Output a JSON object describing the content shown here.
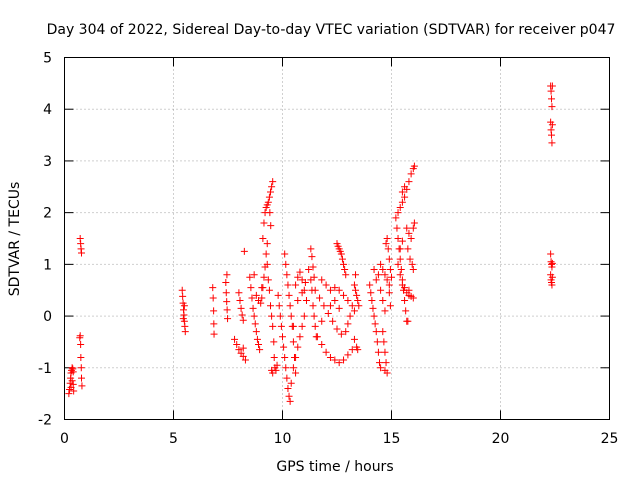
{
  "chart_data": {
    "type": "scatter",
    "title": "Day 304 of 2022, Sidereal Day-to-day VTEC variation (SDTVAR) for receiver p047",
    "xlabel": "GPS time / hours",
    "ylabel": "SDTVAR / TECUs",
    "xlim": [
      0,
      25
    ],
    "ylim": [
      -2,
      5
    ],
    "xticks": [
      "0",
      "5",
      "10",
      "15",
      "20",
      "25"
    ],
    "yticks": [
      "-2",
      "-1",
      "0",
      "1",
      "2",
      "3",
      "4",
      "5"
    ],
    "grid": true,
    "marker": "plus",
    "series_color": "#ff0000",
    "series": [
      {
        "name": "SDTVAR",
        "points": [
          [
            0.2,
            -1.5
          ],
          [
            0.23,
            -1.42
          ],
          [
            0.26,
            -1.3
          ],
          [
            0.28,
            -1.2
          ],
          [
            0.3,
            -1.1
          ],
          [
            0.32,
            -1.05
          ],
          [
            0.35,
            -1.0
          ],
          [
            0.38,
            -1.02
          ],
          [
            0.4,
            -1.08
          ],
          [
            0.3,
            -1.38
          ],
          [
            0.35,
            -1.25
          ],
          [
            0.4,
            -1.32
          ],
          [
            0.42,
            -1.45
          ],
          [
            0.7,
            -0.42
          ],
          [
            0.72,
            -0.38
          ],
          [
            0.74,
            -0.55
          ],
          [
            0.75,
            -0.8
          ],
          [
            0.77,
            -1.0
          ],
          [
            0.78,
            -1.2
          ],
          [
            0.8,
            -1.35
          ],
          [
            0.72,
            1.5
          ],
          [
            0.74,
            1.4
          ],
          [
            0.76,
            1.3
          ],
          [
            0.78,
            1.22
          ],
          [
            5.4,
            0.5
          ],
          [
            5.42,
            0.38
          ],
          [
            5.44,
            0.25
          ],
          [
            5.46,
            0.12
          ],
          [
            5.48,
            0.02
          ],
          [
            5.5,
            -0.1
          ],
          [
            5.52,
            -0.2
          ],
          [
            5.54,
            -0.3
          ],
          [
            5.45,
            -0.05
          ],
          [
            5.5,
            0.2
          ],
          [
            6.8,
            0.55
          ],
          [
            6.82,
            0.35
          ],
          [
            6.84,
            0.1
          ],
          [
            6.85,
            -0.15
          ],
          [
            6.86,
            -0.35
          ],
          [
            7.4,
            0.65
          ],
          [
            7.42,
            0.45
          ],
          [
            7.44,
            0.28
          ],
          [
            7.46,
            0.12
          ],
          [
            7.48,
            -0.05
          ],
          [
            7.45,
            0.8
          ],
          [
            7.8,
            -0.45
          ],
          [
            7.9,
            -0.55
          ],
          [
            8.0,
            -0.65
          ],
          [
            8.1,
            -0.72
          ],
          [
            8.2,
            -0.78
          ],
          [
            8.3,
            -0.85
          ],
          [
            8.2,
            -0.62
          ],
          [
            8.0,
            0.45
          ],
          [
            8.05,
            0.3
          ],
          [
            8.1,
            0.15
          ],
          [
            8.15,
            0.02
          ],
          [
            8.2,
            -0.08
          ],
          [
            8.25,
            1.25
          ],
          [
            8.5,
            0.75
          ],
          [
            8.55,
            0.55
          ],
          [
            8.6,
            0.35
          ],
          [
            8.65,
            0.15
          ],
          [
            8.7,
            0.0
          ],
          [
            8.75,
            -0.15
          ],
          [
            8.8,
            -0.3
          ],
          [
            8.85,
            -0.45
          ],
          [
            8.9,
            -0.55
          ],
          [
            8.95,
            -0.65
          ],
          [
            8.8,
            0.4
          ],
          [
            8.9,
            0.3
          ],
          [
            9.0,
            0.25
          ],
          [
            9.05,
            0.55
          ],
          [
            8.7,
            0.8
          ],
          [
            9.1,
            1.5
          ],
          [
            9.15,
            1.8
          ],
          [
            9.2,
            2.0
          ],
          [
            9.25,
            2.1
          ],
          [
            9.3,
            2.15
          ],
          [
            9.35,
            2.2
          ],
          [
            9.4,
            2.3
          ],
          [
            9.45,
            2.4
          ],
          [
            9.5,
            2.5
          ],
          [
            9.55,
            2.6
          ],
          [
            9.42,
            2.0
          ],
          [
            9.46,
            1.75
          ],
          [
            9.3,
            1.4
          ],
          [
            9.25,
            1.2
          ],
          [
            9.2,
            0.95
          ],
          [
            9.15,
            0.75
          ],
          [
            9.1,
            0.55
          ],
          [
            9.05,
            0.35
          ],
          [
            9.3,
            1.0
          ],
          [
            9.35,
            0.7
          ],
          [
            9.4,
            0.5
          ],
          [
            9.45,
            0.2
          ],
          [
            9.5,
            0.0
          ],
          [
            9.55,
            -0.2
          ],
          [
            9.6,
            -0.5
          ],
          [
            9.62,
            -0.8
          ],
          [
            9.65,
            -1.0
          ],
          [
            9.5,
            -1.05
          ],
          [
            9.55,
            -1.1
          ],
          [
            9.7,
            -1.05
          ],
          [
            9.75,
            -0.95
          ],
          [
            9.8,
            0.4
          ],
          [
            9.85,
            0.2
          ],
          [
            9.9,
            0.0
          ],
          [
            9.95,
            -0.2
          ],
          [
            10.0,
            -0.4
          ],
          [
            10.05,
            -0.6
          ],
          [
            10.1,
            -0.8
          ],
          [
            10.15,
            -1.0
          ],
          [
            10.2,
            -1.2
          ],
          [
            10.25,
            -1.4
          ],
          [
            10.3,
            -1.55
          ],
          [
            10.35,
            -1.65
          ],
          [
            10.1,
            1.2
          ],
          [
            10.15,
            1.0
          ],
          [
            10.2,
            0.8
          ],
          [
            10.25,
            0.6
          ],
          [
            10.3,
            0.4
          ],
          [
            10.35,
            0.2
          ],
          [
            10.4,
            0.0
          ],
          [
            10.45,
            -0.2
          ],
          [
            10.5,
            -0.5
          ],
          [
            10.55,
            -0.8
          ],
          [
            10.6,
            -1.1
          ],
          [
            10.4,
            -1.3
          ],
          [
            10.5,
            -1.0
          ],
          [
            10.6,
            0.6
          ],
          [
            10.7,
            0.75
          ],
          [
            10.8,
            0.85
          ],
          [
            10.9,
            0.7
          ],
          [
            11.0,
            0.5
          ],
          [
            11.1,
            0.3
          ],
          [
            11.0,
            0.0
          ],
          [
            10.9,
            -0.2
          ],
          [
            10.8,
            -0.4
          ],
          [
            10.7,
            -0.6
          ],
          [
            10.6,
            -0.8
          ],
          [
            10.5,
            -0.2
          ],
          [
            10.7,
            0.3
          ],
          [
            10.9,
            0.45
          ],
          [
            11.05,
            0.65
          ],
          [
            11.2,
            0.9
          ],
          [
            11.3,
            0.7
          ],
          [
            11.35,
            0.5
          ],
          [
            11.4,
            0.2
          ],
          [
            11.45,
            0.0
          ],
          [
            11.5,
            -0.2
          ],
          [
            11.55,
            -0.4
          ],
          [
            11.3,
            1.3
          ],
          [
            11.35,
            1.15
          ],
          [
            11.4,
            0.95
          ],
          [
            11.45,
            0.75
          ],
          [
            11.5,
            0.5
          ],
          [
            11.7,
            0.35
          ],
          [
            11.9,
            0.2
          ],
          [
            12.1,
            0.05
          ],
          [
            12.3,
            -0.1
          ],
          [
            12.5,
            -0.25
          ],
          [
            12.7,
            -0.35
          ],
          [
            12.9,
            -0.3
          ],
          [
            13.0,
            -0.15
          ],
          [
            13.1,
            0.0
          ],
          [
            12.6,
            0.15
          ],
          [
            12.4,
            0.3
          ],
          [
            12.2,
            0.2
          ],
          [
            11.8,
            -0.1
          ],
          [
            11.8,
            -0.55
          ],
          [
            12.0,
            -0.7
          ],
          [
            12.2,
            -0.8
          ],
          [
            12.4,
            -0.85
          ],
          [
            12.6,
            -0.9
          ],
          [
            12.8,
            -0.85
          ],
          [
            13.0,
            -0.75
          ],
          [
            13.2,
            -0.65
          ],
          [
            11.6,
            -0.4
          ],
          [
            13.3,
            -0.45
          ],
          [
            11.8,
            0.7
          ],
          [
            12.0,
            0.6
          ],
          [
            12.2,
            0.5
          ],
          [
            12.4,
            0.55
          ],
          [
            12.6,
            0.5
          ],
          [
            12.8,
            0.4
          ],
          [
            13.0,
            0.3
          ],
          [
            13.2,
            0.2
          ],
          [
            13.3,
            0.1
          ],
          [
            12.5,
            1.4
          ],
          [
            12.55,
            1.35
          ],
          [
            12.6,
            1.3
          ],
          [
            12.65,
            1.25
          ],
          [
            12.7,
            1.2
          ],
          [
            12.75,
            1.1
          ],
          [
            12.8,
            1.0
          ],
          [
            12.85,
            0.9
          ],
          [
            12.9,
            0.8
          ],
          [
            13.3,
            0.6
          ],
          [
            13.35,
            0.5
          ],
          [
            13.4,
            0.4
          ],
          [
            13.45,
            0.3
          ],
          [
            13.5,
            0.2
          ],
          [
            13.4,
            -0.6
          ],
          [
            13.45,
            -0.65
          ],
          [
            13.35,
            0.8
          ],
          [
            14.0,
            0.6
          ],
          [
            14.05,
            0.45
          ],
          [
            14.1,
            0.3
          ],
          [
            14.15,
            0.15
          ],
          [
            14.2,
            0.0
          ],
          [
            14.25,
            -0.15
          ],
          [
            14.3,
            -0.3
          ],
          [
            14.35,
            -0.5
          ],
          [
            14.4,
            -0.7
          ],
          [
            14.45,
            -0.9
          ],
          [
            14.5,
            -1.0
          ],
          [
            14.2,
            0.9
          ],
          [
            14.3,
            0.7
          ],
          [
            14.4,
            0.8
          ],
          [
            14.5,
            1.0
          ],
          [
            14.6,
            0.9
          ],
          [
            14.7,
            0.8
          ],
          [
            14.8,
            0.7
          ],
          [
            14.9,
            0.6
          ],
          [
            15.0,
            0.75
          ],
          [
            14.5,
            0.5
          ],
          [
            14.6,
            0.3
          ],
          [
            14.7,
            0.1
          ],
          [
            14.6,
            -0.3
          ],
          [
            14.65,
            -0.5
          ],
          [
            14.7,
            -0.7
          ],
          [
            14.75,
            -0.9
          ],
          [
            14.8,
            -1.1
          ],
          [
            14.7,
            -1.05
          ],
          [
            14.8,
            1.5
          ],
          [
            14.85,
            1.3
          ],
          [
            14.9,
            1.1
          ],
          [
            14.95,
            0.9
          ],
          [
            14.9,
            0.45
          ],
          [
            14.95,
            0.2
          ],
          [
            14.75,
            1.4
          ],
          [
            15.2,
            1.9
          ],
          [
            15.25,
            1.7
          ],
          [
            15.3,
            1.5
          ],
          [
            15.35,
            1.3
          ],
          [
            15.4,
            1.1
          ],
          [
            15.45,
            0.9
          ],
          [
            15.5,
            0.7
          ],
          [
            15.55,
            0.5
          ],
          [
            15.6,
            0.3
          ],
          [
            15.65,
            0.1
          ],
          [
            15.7,
            -0.1
          ],
          [
            15.75,
            -0.1
          ],
          [
            15.3,
            1.0
          ],
          [
            15.4,
            0.8
          ],
          [
            15.5,
            0.6
          ],
          [
            15.6,
            0.55
          ],
          [
            15.7,
            0.45
          ],
          [
            15.8,
            0.4
          ],
          [
            15.9,
            0.38
          ],
          [
            16.0,
            0.35
          ],
          [
            15.8,
            0.5
          ],
          [
            15.3,
            2.0
          ],
          [
            15.4,
            2.1
          ],
          [
            15.5,
            2.2
          ],
          [
            15.6,
            2.3
          ],
          [
            15.7,
            2.45
          ],
          [
            15.8,
            2.6
          ],
          [
            15.9,
            2.75
          ],
          [
            16.0,
            2.85
          ],
          [
            16.05,
            2.9
          ],
          [
            15.5,
            2.4
          ],
          [
            15.6,
            2.5
          ],
          [
            15.7,
            1.7
          ],
          [
            15.8,
            1.6
          ],
          [
            15.9,
            1.5
          ],
          [
            16.0,
            1.7
          ],
          [
            16.05,
            1.8
          ],
          [
            15.75,
            1.3
          ],
          [
            15.85,
            1.1
          ],
          [
            15.95,
            1.0
          ],
          [
            16.0,
            0.9
          ],
          [
            15.4,
            1.3
          ],
          [
            15.5,
            1.45
          ],
          [
            22.3,
            4.45
          ],
          [
            22.32,
            4.35
          ],
          [
            22.34,
            4.2
          ],
          [
            22.36,
            4.05
          ],
          [
            22.38,
            4.45
          ],
          [
            22.3,
            3.75
          ],
          [
            22.32,
            3.6
          ],
          [
            22.34,
            3.5
          ],
          [
            22.36,
            3.35
          ],
          [
            22.38,
            3.7
          ],
          [
            22.3,
            1.2
          ],
          [
            22.32,
            1.05
          ],
          [
            22.34,
            1.0
          ],
          [
            22.36,
            0.95
          ],
          [
            22.38,
            1.02
          ],
          [
            22.3,
            0.8
          ],
          [
            22.32,
            0.7
          ],
          [
            22.34,
            0.65
          ],
          [
            22.36,
            0.6
          ],
          [
            22.38,
            0.75
          ]
        ]
      }
    ]
  }
}
